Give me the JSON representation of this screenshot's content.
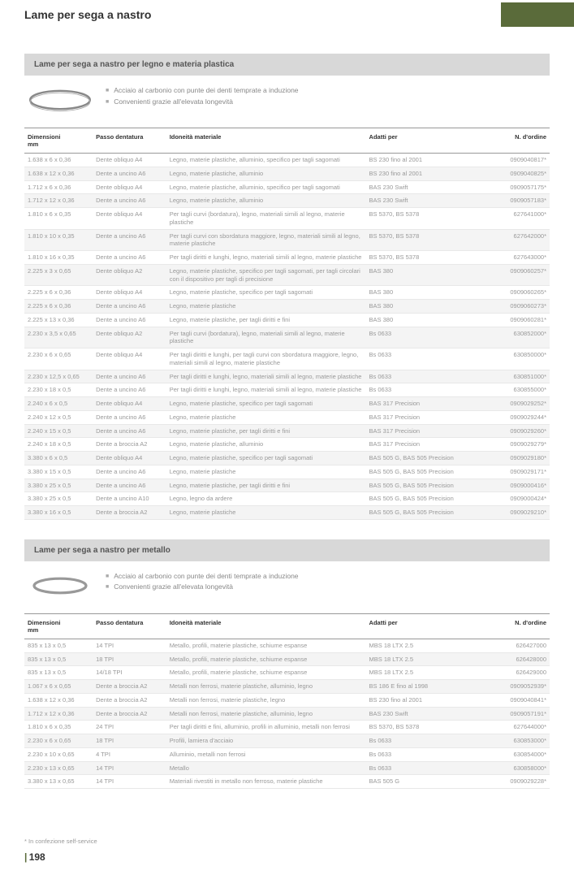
{
  "title": "Lame per sega a nastro",
  "section1": {
    "header": "Lame per sega a nastro per legno e materia plastica",
    "bullets": [
      "Acciaio al carbonio con punte dei denti temprate a induzione",
      "Convenienti grazie all'elevata longevità"
    ],
    "columns": [
      "Dimensioni mm",
      "Passo dentatura",
      "Idoneità materiale",
      "Adatti per",
      "N. d'ordine"
    ],
    "rows": [
      [
        "1.638 x 6 x 0,36",
        "Dente obliquo A4",
        "Legno, materie plastiche, alluminio, specifico per tagli sagomati",
        "BS 230 fino al 2001",
        "0909040817*"
      ],
      [
        "1.638 x 12 x 0,36",
        "Dente a uncino A6",
        "Legno, materie plastiche, alluminio",
        "BS 230 fino al 2001",
        "0909040825*"
      ],
      [
        "1.712 x 6 x 0,36",
        "Dente obliquo A4",
        "Legno, materie plastiche, alluminio, specifico per tagli sagomati",
        "BAS 230 Swift",
        "0909057175*"
      ],
      [
        "1.712 x 12 x 0,36",
        "Dente a uncino A6",
        "Legno, materie plastiche, alluminio",
        "BAS 230 Swift",
        "0909057183*"
      ],
      [
        "1.810 x 6 x 0,35",
        "Dente obliquo A4",
        "Per tagli curvi (bordatura), legno, materiali simili al legno, materie plastiche",
        "BS 5370, BS 5378",
        "627641000*"
      ],
      [
        "1.810 x 10 x 0,35",
        "Dente a uncino A6",
        "Per tagli curvi con sbordatura maggiore, legno, materiali simili al legno, materie plastiche",
        "BS 5370, BS 5378",
        "627642000*"
      ],
      [
        "1.810 x 16 x 0,35",
        "Dente a uncino A6",
        "Per tagli diritti e lunghi, legno, materiali simili al legno, materie plastiche",
        "BS 5370, BS 5378",
        "627643000*"
      ],
      [
        "2.225 x 3 x 0,65",
        "Dente obliquo A2",
        "Legno, materie plastiche, specifico per tagli sagomati, per tagli circolari con il dispositivo per tagli di precisione",
        "BAS 380",
        "0909060257*"
      ],
      [
        "2.225 x 6 x 0,36",
        "Dente obliquo A4",
        "Legno, materie plastiche, specifico per tagli sagomati",
        "BAS 380",
        "0909060265*"
      ],
      [
        "2.225 x 6 x 0,36",
        "Dente a uncino A6",
        "Legno, materie plastiche",
        "BAS 380",
        "0909060273*"
      ],
      [
        "2.225 x 13 x 0,36",
        "Dente a uncino A6",
        "Legno, materie plastiche, per tagli diritti e fini",
        "BAS 380",
        "0909060281*"
      ],
      [
        "2.230 x 3,5 x 0,65",
        "Dente obliquo A2",
        "Per tagli curvi (bordatura), legno, materiali simili al legno, materie plastiche",
        "Bs 0633",
        "630852000*"
      ],
      [
        "2.230 x 6 x 0,65",
        "Dente obliquo A4",
        "Per tagli diritti e lunghi, per tagli curvi con sbordatura maggiore, legno, materiali simili al legno, materie plastiche",
        "Bs 0633",
        "630850000*"
      ],
      [
        "2.230 x 12,5 x 0,65",
        "Dente a uncino A6",
        "Per tagli diritti e lunghi, legno, materiali simili al legno, materie plastiche",
        "Bs 0633",
        "630851000*"
      ],
      [
        "2.230 x 18 x 0,5",
        "Dente a uncino A6",
        "Per tagli diritti e lunghi, legno, materiali simili al legno, materie plastiche",
        "Bs 0633",
        "630855000*"
      ],
      [
        "2.240 x 6 x 0,5",
        "Dente obliquo A4",
        "Legno, materie plastiche, specifico per tagli sagomati",
        "BAS 317 Precision",
        "0909029252*"
      ],
      [
        "2.240 x 12 x 0,5",
        "Dente a uncino A6",
        "Legno, materie plastiche",
        "BAS 317 Precision",
        "0909029244*"
      ],
      [
        "2.240 x 15 x 0,5",
        "Dente a uncino A6",
        "Legno, materie plastiche, per tagli diritti e fini",
        "BAS 317 Precision",
        "0909029260*"
      ],
      [
        "2.240 x 18 x 0,5",
        "Dente a broccia A2",
        "Legno, materie plastiche, alluminio",
        "BAS 317 Precision",
        "0909029279*"
      ],
      [
        "3.380 x 6 x 0,5",
        "Dente obliquo A4",
        "Legno, materie plastiche, specifico per tagli sagomati",
        "BAS 505 G, BAS 505 Precision",
        "0909029180*"
      ],
      [
        "3.380 x 15 x 0,5",
        "Dente a uncino A6",
        "Legno, materie plastiche",
        "BAS 505 G, BAS 505 Precision",
        "0909029171*"
      ],
      [
        "3.380 x 25 x 0,5",
        "Dente a uncino A6",
        "Legno, materie plastiche, per tagli diritti e fini",
        "BAS 505 G, BAS 505 Precision",
        "0909000416*"
      ],
      [
        "3.380 x 25 x 0,5",
        "Dente a uncino A10",
        "Legno, legno da ardere",
        "BAS 505 G, BAS 505 Precision",
        "0909000424*"
      ],
      [
        "3.380 x 16 x 0,5",
        "Dente a broccia A2",
        "Legno, materie plastiche",
        "BAS 505 G, BAS 505 Precision",
        "0909029210*"
      ]
    ]
  },
  "section2": {
    "header": "Lame per sega a nastro per metallo",
    "bullets": [
      "Acciaio al carbonio con punte dei denti temprate a induzione",
      "Convenienti grazie all'elevata longevità"
    ],
    "columns": [
      "Dimensioni mm",
      "Passo dentatura",
      "Idoneità materiale",
      "Adatti per",
      "N. d'ordine"
    ],
    "rows": [
      [
        "835 x 13 x 0,5",
        "14 TPI",
        "Metallo, profili, materie plastiche, schiume espanse",
        "MBS 18 LTX 2.5",
        "626427000"
      ],
      [
        "835 x 13 x 0,5",
        "18 TPI",
        "Metallo, profili, materie plastiche, schiume espanse",
        "MBS 18 LTX 2.5",
        "626428000"
      ],
      [
        "835 x 13 x 0,5",
        "14/18 TPI",
        "Metallo, profili, materie plastiche, schiume espanse",
        "MBS 18 LTX 2.5",
        "626429000"
      ],
      [
        "1.067 x 6 x 0,65",
        "Dente a broccia A2",
        "Metalli non ferrosi, materie plastiche, alluminio, legno",
        "BS 186 E fino al 1998",
        "0909052939*"
      ],
      [
        "1.638 x 12 x 0,36",
        "Dente a broccia A2",
        "Metalli non ferrosi, materie plastiche, legno",
        "BS 230 fino al 2001",
        "0909040841*"
      ],
      [
        "1.712 x 12 x 0,36",
        "Dente a broccia A2",
        "Metalli non ferrosi, materie plastiche, alluminio, legno",
        "BAS 230 Swift",
        "0909057191*"
      ],
      [
        "1.810 x 6 x 0,35",
        "24 TPI",
        "Per tagli diritti e fini, alluminio, profili in alluminio, metalli non ferrosi",
        "BS 5370, BS 5378",
        "627644000*"
      ],
      [
        "2.230 x 6 x 0,65",
        "18 TPI",
        "Profili, lamiera d'acciaio",
        "Bs 0633",
        "630853000*"
      ],
      [
        "2.230 x 10 x 0,65",
        "4 TPI",
        "Alluminio, metalli non ferrosi",
        "Bs 0633",
        "630854000*"
      ],
      [
        "2.230 x 13 x 0,65",
        "14 TPI",
        "Metallo",
        "Bs 0633",
        "630858000*"
      ],
      [
        "3.380 x 13 x 0,65",
        "14 TPI",
        "Materiali rivestiti in metallo non ferroso, materie plastiche",
        "BAS 505 G",
        "0909029228*"
      ]
    ]
  },
  "footnote": "* In confezione self-service",
  "page_num": "198",
  "colors": {
    "accent": "#5a6b3a",
    "header_bg": "#d8d8d8",
    "alt_row": "#f4f4f4",
    "text_muted": "#999"
  }
}
